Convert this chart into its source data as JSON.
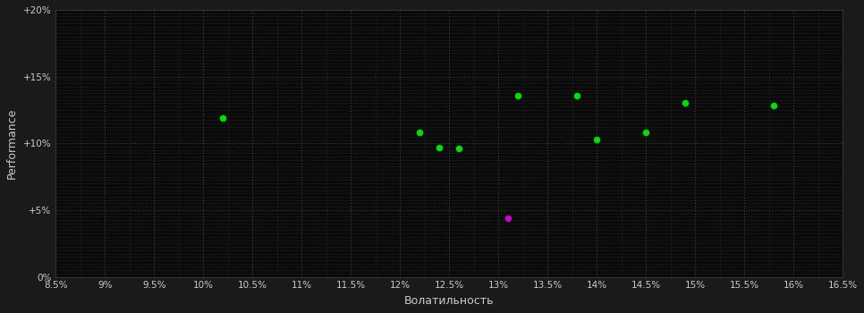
{
  "background_color": "#1a1a1a",
  "plot_bg_color": "#0a0a0a",
  "grid_color": "#404040",
  "text_color": "#cccccc",
  "xlabel": "Волатильность",
  "ylabel": "Performance",
  "xlim": [
    0.085,
    0.165
  ],
  "ylim": [
    0.0,
    0.2
  ],
  "xticks": [
    0.085,
    0.09,
    0.095,
    0.1,
    0.105,
    0.11,
    0.115,
    0.12,
    0.125,
    0.13,
    0.135,
    0.14,
    0.145,
    0.15,
    0.155,
    0.16,
    0.165
  ],
  "yticks": [
    0.0,
    0.05,
    0.1,
    0.15,
    0.2
  ],
  "xtick_labels": [
    "8.5%",
    "9%",
    "9.5%",
    "10%",
    "10.5%",
    "11%",
    "11.5%",
    "12%",
    "12.5%",
    "13%",
    "13.5%",
    "14%",
    "14.5%",
    "15%",
    "15.5%",
    "16%",
    "16.5%"
  ],
  "ytick_labels": [
    "0%",
    "+5%",
    "+10%",
    "+15%",
    "+20%"
  ],
  "green_points": [
    [
      0.102,
      0.119
    ],
    [
      0.122,
      0.108
    ],
    [
      0.124,
      0.097
    ],
    [
      0.126,
      0.096
    ],
    [
      0.132,
      0.136
    ],
    [
      0.138,
      0.136
    ],
    [
      0.14,
      0.103
    ],
    [
      0.145,
      0.108
    ],
    [
      0.149,
      0.13
    ],
    [
      0.158,
      0.128
    ]
  ],
  "magenta_points": [
    [
      0.131,
      0.044
    ]
  ],
  "marker_size": 30,
  "green_color": "#00dd00",
  "magenta_color": "#cc00cc"
}
